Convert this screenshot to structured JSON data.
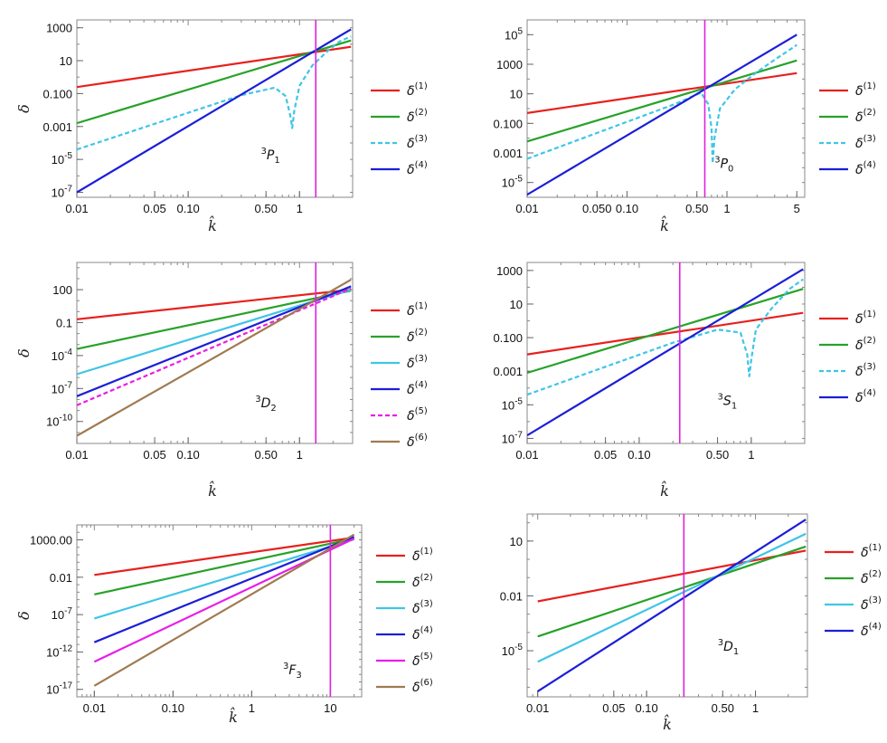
{
  "chart_data": [
    {
      "type": "line",
      "panel": "top-left",
      "xscale": "log",
      "yscale": "log",
      "xlim": [
        0.01,
        3.0
      ],
      "ylim": [
        5e-08,
        3000
      ],
      "xlabel": "k̂",
      "ylabel": "δ",
      "xticks": [
        {
          "v": 0.01,
          "l": "0.01"
        },
        {
          "v": 0.05,
          "l": "0.05"
        },
        {
          "v": 0.1,
          "l": "0.10"
        },
        {
          "v": 0.5,
          "l": "0.50"
        },
        {
          "v": 1,
          "l": "1"
        }
      ],
      "yticks": [
        {
          "v": 1e-07,
          "b": "10",
          "e": "-7"
        },
        {
          "v": 1e-05,
          "b": "10",
          "e": "-5"
        },
        {
          "v": 0.001,
          "l": "0.001"
        },
        {
          "v": 0.1,
          "l": "0.100"
        },
        {
          "v": 10,
          "l": "10"
        },
        {
          "v": 1000,
          "l": "1000"
        }
      ],
      "annotation": {
        "sup": "3",
        "main": "P",
        "sub": "1",
        "x": 0.45,
        "y": 1e-05
      },
      "vline": 1.4,
      "series": [
        {
          "label": "δ(1)",
          "sup": "(1)",
          "color": "#e8201d",
          "dash": false,
          "x": [
            0.01,
            2.9
          ],
          "y": [
            0.25,
            70
          ]
        },
        {
          "label": "δ(2)",
          "sup": "(2)",
          "color": "#27a22a",
          "dash": false,
          "x": [
            0.01,
            2.9
          ],
          "y": [
            0.0016,
            170
          ]
        },
        {
          "label": "δ(3)",
          "sup": "(3)",
          "color": "#3fc5e6",
          "dash": true,
          "x": [
            0.01,
            0.3,
            0.6,
            0.75,
            0.83,
            0.86,
            0.9,
            1.0,
            1.3,
            1.8,
            2.3,
            2.9
          ],
          "y": [
            4e-05,
            0.08,
            0.23,
            0.07,
            0.004,
            0.0008,
            0.01,
            0.3,
            5,
            40,
            150,
            300
          ]
        },
        {
          "label": "δ(4)",
          "sup": "(4)",
          "color": "#1b1ed8",
          "dash": false,
          "x": [
            0.01,
            2.9
          ],
          "y": [
            1e-07,
            800
          ]
        }
      ]
    },
    {
      "type": "line",
      "panel": "top-right",
      "xscale": "log",
      "yscale": "log",
      "xlim": [
        0.01,
        6.0
      ],
      "ylim": [
        1e-06,
        1000000.0
      ],
      "xlabel": "k̂",
      "ylabel": "",
      "xticks": [
        {
          "v": 0.01,
          "l": "0.01"
        },
        {
          "v": 0.05,
          "l": "0.050"
        },
        {
          "v": 0.1,
          "l": "0.10"
        },
        {
          "v": 0.5,
          "l": "0.50"
        },
        {
          "v": 1,
          "l": "1"
        },
        {
          "v": 5,
          "l": "5"
        }
      ],
      "yticks": [
        {
          "v": 1e-05,
          "b": "10",
          "e": "-5"
        },
        {
          "v": 0.001,
          "l": "0.001"
        },
        {
          "v": 0.1,
          "l": "0.100"
        },
        {
          "v": 10,
          "l": "10"
        },
        {
          "v": 1000,
          "l": "1000"
        },
        {
          "v": 100000.0,
          "b": "10",
          "e": "5"
        }
      ],
      "annotation": {
        "sup": "3",
        "main": "P",
        "sub": "0",
        "x": 0.75,
        "y": 0.0001
      },
      "vline": 0.6,
      "series": [
        {
          "label": "δ(1)",
          "sup": "(1)",
          "color": "#e8201d",
          "dash": false,
          "x": [
            0.01,
            5
          ],
          "y": [
            0.5,
            250
          ]
        },
        {
          "label": "δ(2)",
          "sup": "(2)",
          "color": "#27a22a",
          "dash": false,
          "x": [
            0.01,
            5
          ],
          "y": [
            0.006,
            1800
          ]
        },
        {
          "label": "δ(3)",
          "sup": "(3)",
          "color": "#3fc5e6",
          "dash": true,
          "x": [
            0.01,
            0.3,
            0.55,
            0.65,
            0.7,
            0.72,
            0.75,
            0.85,
            1.2,
            2,
            3,
            5
          ],
          "y": [
            0.0004,
            2,
            12,
            2,
            0.05,
            0.0002,
            0.01,
            1,
            20,
            300,
            2000,
            20000
          ]
        },
        {
          "label": "δ(4)",
          "sup": "(4)",
          "color": "#1b1ed8",
          "dash": false,
          "x": [
            0.01,
            5
          ],
          "y": [
            1.5e-06,
            100000.0
          ]
        }
      ]
    },
    {
      "type": "line",
      "panel": "middle-left",
      "xscale": "log",
      "yscale": "log",
      "xlim": [
        0.01,
        3.0
      ],
      "ylim": [
        1e-12,
        30000.0
      ],
      "xlabel": "k̂",
      "ylabel": "δ",
      "xticks": [
        {
          "v": 0.01,
          "l": "0.01"
        },
        {
          "v": 0.05,
          "l": "0.05"
        },
        {
          "v": 0.1,
          "l": "0.10"
        },
        {
          "v": 0.5,
          "l": "0.50"
        },
        {
          "v": 1,
          "l": "1"
        }
      ],
      "yticks": [
        {
          "v": 1e-10,
          "b": "10",
          "e": "-10"
        },
        {
          "v": 1e-07,
          "b": "10",
          "e": "-7"
        },
        {
          "v": 0.0001,
          "b": "10",
          "e": "-4"
        },
        {
          "v": 0.1,
          "l": "0.1"
        },
        {
          "v": 100,
          "l": "100"
        }
      ],
      "annotation": {
        "sup": "3",
        "main": "D",
        "sub": "2",
        "x": 0.4,
        "y": 2e-09
      },
      "vline": 1.4,
      "series": [
        {
          "label": "δ(1)",
          "sup": "(1)",
          "color": "#e8201d",
          "dash": false,
          "x": [
            0.01,
            2.9
          ],
          "y": [
            0.2,
            100
          ]
        },
        {
          "label": "δ(2)",
          "sup": "(2)",
          "color": "#27a22a",
          "dash": false,
          "x": [
            0.01,
            2.9
          ],
          "y": [
            0.0004,
            80
          ]
        },
        {
          "label": "δ(3)",
          "sup": "(3)",
          "color": "#3fc5e6",
          "dash": false,
          "x": [
            0.01,
            2.9
          ],
          "y": [
            2e-06,
            100
          ]
        },
        {
          "label": "δ(4)",
          "sup": "(4)",
          "color": "#1b1ed8",
          "dash": false,
          "x": [
            0.01,
            2.9
          ],
          "y": [
            2e-08,
            200
          ]
        },
        {
          "label": "δ(5)",
          "sup": "(5)",
          "color": "#ea1ce8",
          "dash": true,
          "x": [
            0.01,
            2.9
          ],
          "y": [
            3e-09,
            130
          ]
        },
        {
          "label": "δ(6)",
          "sup": "(6)",
          "color": "#a07a50",
          "dash": false,
          "x": [
            0.01,
            2.9
          ],
          "y": [
            5e-12,
            800
          ]
        }
      ]
    },
    {
      "type": "line",
      "panel": "middle-right",
      "xscale": "log",
      "yscale": "log",
      "xlim": [
        0.01,
        3.0
      ],
      "ylim": [
        5e-08,
        3000
      ],
      "xlabel": "k̂",
      "ylabel": "",
      "xticks": [
        {
          "v": 0.01,
          "l": "0.01"
        },
        {
          "v": 0.05,
          "l": "0.05"
        },
        {
          "v": 0.1,
          "l": "0.10"
        },
        {
          "v": 0.5,
          "l": "0.50"
        },
        {
          "v": 1,
          "l": "1"
        }
      ],
      "yticks": [
        {
          "v": 1e-07,
          "b": "10",
          "e": "-7"
        },
        {
          "v": 1e-05,
          "b": "10",
          "e": "-5"
        },
        {
          "v": 0.001,
          "l": "0.001"
        },
        {
          "v": 0.1,
          "l": "0.100"
        },
        {
          "v": 10,
          "l": "10"
        },
        {
          "v": 1000,
          "l": "1000"
        }
      ],
      "annotation": {
        "sup": "3",
        "main": "S",
        "sub": "1",
        "x": 0.5,
        "y": 1e-05
      },
      "vline": 0.23,
      "series": [
        {
          "label": "δ(1)",
          "sup": "(1)",
          "color": "#e8201d",
          "dash": false,
          "x": [
            0.01,
            2.9
          ],
          "y": [
            0.01,
            3
          ]
        },
        {
          "label": "δ(2)",
          "sup": "(2)",
          "color": "#27a22a",
          "dash": false,
          "x": [
            0.01,
            2.9
          ],
          "y": [
            0.0008,
            80
          ]
        },
        {
          "label": "δ(3)",
          "sup": "(3)",
          "color": "#3fc5e6",
          "dash": true,
          "x": [
            0.01,
            0.2,
            0.5,
            0.8,
            0.92,
            0.96,
            1.0,
            1.1,
            1.5,
            2.2,
            2.9
          ],
          "y": [
            4e-05,
            0.05,
            0.3,
            0.2,
            0.01,
            0.0005,
            0.005,
            0.3,
            5,
            80,
            300
          ]
        },
        {
          "label": "δ(4)",
          "sup": "(4)",
          "color": "#1b1ed8",
          "dash": false,
          "x": [
            0.01,
            2.9
          ],
          "y": [
            1.5e-07,
            1200
          ]
        }
      ]
    },
    {
      "type": "line",
      "panel": "bottom-left",
      "xscale": "log",
      "yscale": "log",
      "xlim": [
        0.006,
        25
      ],
      "ylim": [
        1e-18,
        100000.0
      ],
      "xlabel": "k̂",
      "ylabel": "δ",
      "xticks": [
        {
          "v": 0.01,
          "l": "0.01"
        },
        {
          "v": 0.1,
          "l": "0.10"
        },
        {
          "v": 1,
          "l": "1"
        },
        {
          "v": 10,
          "l": "10"
        }
      ],
      "yticks": [
        {
          "v": 1e-17,
          "b": "10",
          "e": "-17"
        },
        {
          "v": 1e-12,
          "b": "10",
          "e": "-12"
        },
        {
          "v": 1e-07,
          "b": "10",
          "e": "-7"
        },
        {
          "v": 0.01,
          "l": "0.01"
        },
        {
          "v": 1000,
          "l": "1000.00"
        }
      ],
      "annotation": {
        "sup": "3",
        "main": "F",
        "sub": "3",
        "x": 2.5,
        "y": 1e-15
      },
      "vline": 10,
      "series": [
        {
          "label": "δ(1)",
          "sup": "(1)",
          "color": "#e8201d",
          "dash": false,
          "x": [
            0.01,
            20
          ],
          "y": [
            0.02,
            2000
          ]
        },
        {
          "label": "δ(2)",
          "sup": "(2)",
          "color": "#27a22a",
          "dash": false,
          "x": [
            0.01,
            20
          ],
          "y": [
            5e-05,
            1500
          ]
        },
        {
          "label": "δ(3)",
          "sup": "(3)",
          "color": "#3fc5e6",
          "dash": false,
          "x": [
            0.01,
            20
          ],
          "y": [
            3e-08,
            1200
          ]
        },
        {
          "label": "δ(4)",
          "sup": "(4)",
          "color": "#1b1ed8",
          "dash": false,
          "x": [
            0.01,
            20
          ],
          "y": [
            2e-11,
            2500
          ]
        },
        {
          "label": "δ(5)",
          "sup": "(5)",
          "color": "#ea1ce8",
          "dash": false,
          "x": [
            0.01,
            20
          ],
          "y": [
            5e-14,
            1500
          ]
        },
        {
          "label": "δ(6)",
          "sup": "(6)",
          "color": "#a07a50",
          "dash": false,
          "x": [
            0.01,
            20
          ],
          "y": [
            3e-17,
            5000
          ]
        }
      ]
    },
    {
      "type": "line",
      "panel": "bottom-right",
      "xscale": "log",
      "yscale": "log",
      "xlim": [
        0.008,
        3.0
      ],
      "ylim": [
        3e-08,
        300
      ],
      "xlabel": "k̂",
      "ylabel": "",
      "xticks": [
        {
          "v": 0.01,
          "l": "0.01"
        },
        {
          "v": 0.05,
          "l": "0.05"
        },
        {
          "v": 0.1,
          "l": "0.10"
        },
        {
          "v": 0.5,
          "l": "0.50"
        },
        {
          "v": 1,
          "l": "1"
        }
      ],
      "yticks": [
        {
          "v": 1e-05,
          "b": "10",
          "e": "-5"
        },
        {
          "v": 0.01,
          "l": "0.01"
        },
        {
          "v": 10,
          "l": "10"
        }
      ],
      "annotation": {
        "sup": "3",
        "main": "D",
        "sub": "1",
        "x": 0.45,
        "y": 1e-05
      },
      "vline": 0.22,
      "series": [
        {
          "label": "δ(1)",
          "sup": "(1)",
          "color": "#e8201d",
          "dash": false,
          "x": [
            0.01,
            2.9
          ],
          "y": [
            0.005,
            3
          ]
        },
        {
          "label": "δ(2)",
          "sup": "(2)",
          "color": "#27a22a",
          "dash": false,
          "x": [
            0.01,
            2.9
          ],
          "y": [
            6e-05,
            5
          ]
        },
        {
          "label": "δ(3)",
          "sup": "(3)",
          "color": "#3fc5e6",
          "dash": false,
          "x": [
            0.01,
            2.9
          ],
          "y": [
            2.5e-06,
            25
          ]
        },
        {
          "label": "δ(4)",
          "sup": "(4)",
          "color": "#1b1ed8",
          "dash": false,
          "x": [
            0.01,
            2.9
          ],
          "y": [
            6e-08,
            150
          ]
        }
      ]
    }
  ],
  "vline_color": "#e020e0"
}
